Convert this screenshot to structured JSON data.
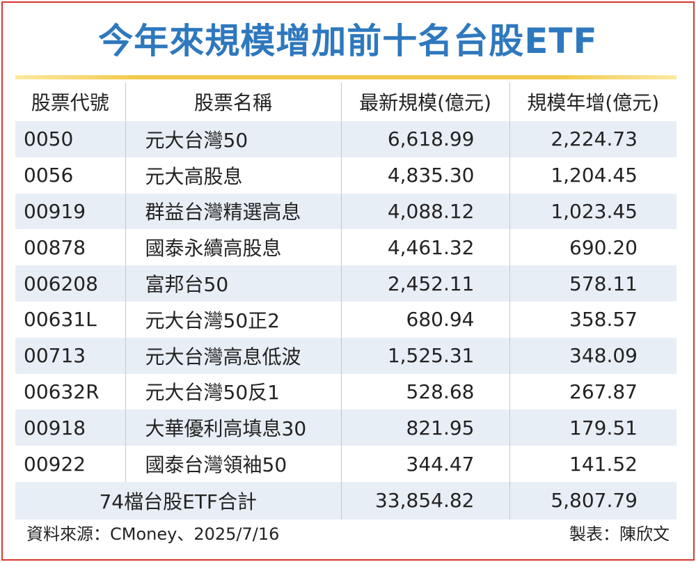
{
  "title": "今年來規模增加前十名台股ETF",
  "headers": [
    "股票代號",
    "股票名稱",
    "最新規模(億元)",
    "規模年增(億元)"
  ],
  "rows": [
    {
      "code": "0050",
      "name": "元大台灣50",
      "size": "6,618.99",
      "growth": "2,224.73"
    },
    {
      "code": "0056",
      "name": "元大高股息",
      "size": "4,835.30",
      "growth": "1,204.45"
    },
    {
      "code": "00919",
      "name": "群益台灣精選高息",
      "size": "4,088.12",
      "growth": "1,023.45"
    },
    {
      "code": "00878",
      "name": "國泰永續高股息",
      "size": "4,461.32",
      "growth": "690.20"
    },
    {
      "code": "006208",
      "name": "富邦台50",
      "size": "2,452.11",
      "growth": "578.11"
    },
    {
      "code": "00631L",
      "name": "元大台灣50正2",
      "size": "680.94",
      "growth": "358.57"
    },
    {
      "code": "00713",
      "name": "元大台灣高息低波",
      "size": "1,525.31",
      "growth": "348.09"
    },
    {
      "code": "00632R",
      "name": "元大台灣50反1",
      "size": "528.68",
      "growth": "267.87"
    },
    {
      "code": "00918",
      "name": "大華優利高填息30",
      "size": "821.95",
      "growth": "179.51"
    },
    {
      "code": "00922",
      "name": "國泰台灣領袖50",
      "size": "344.47",
      "growth": "141.52"
    }
  ],
  "total": {
    "label": "74檔台股ETF合計",
    "size": "33,854.82",
    "growth": "5,807.79"
  },
  "footer": {
    "source": "資料來源：CMoney、2025/7/16",
    "credit": "製表：陳欣文"
  },
  "colors": {
    "title": "#2e78be",
    "border": "#d9362f",
    "stripe": "#e8eef6",
    "rule": "#f2c94c"
  }
}
